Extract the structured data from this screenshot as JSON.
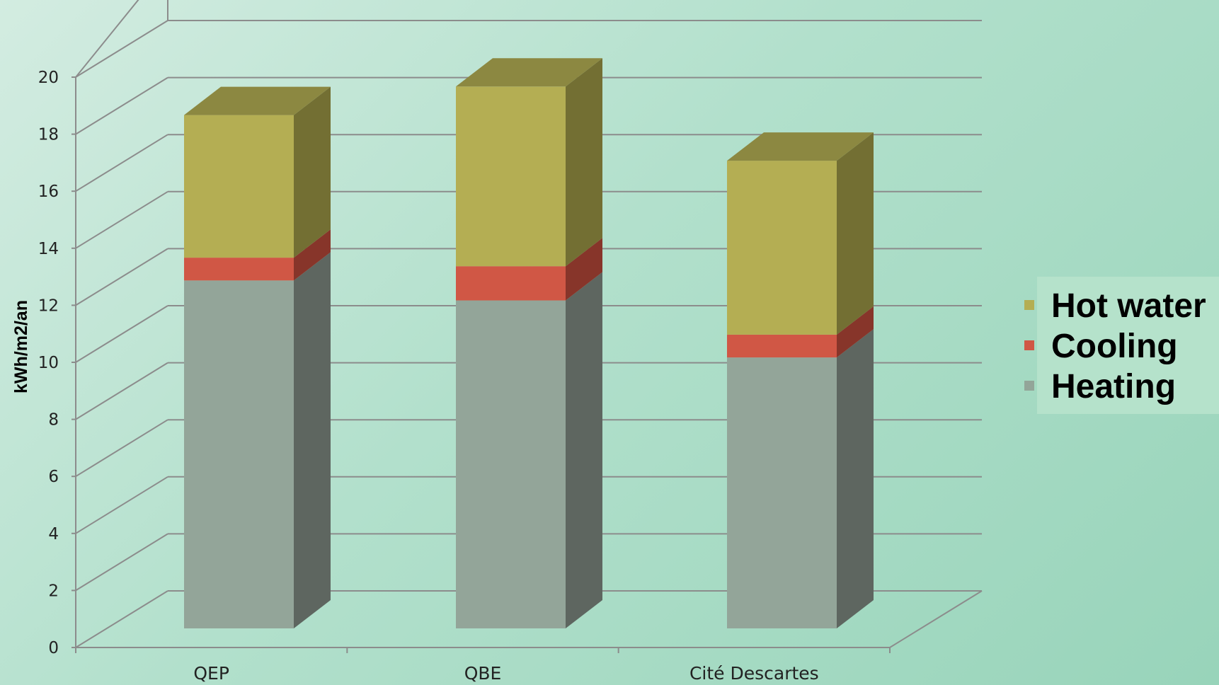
{
  "chart_data": {
    "type": "bar",
    "stacked": true,
    "three_d": true,
    "categories": [
      "QEP",
      "QBE",
      "Cité Descartes"
    ],
    "series": [
      {
        "name": "Heating",
        "values": [
          12.2,
          11.5,
          9.5
        ],
        "color": "#93a599",
        "side_color": "#5e6660"
      },
      {
        "name": "Cooling",
        "values": [
          0.8,
          1.2,
          0.8
        ],
        "color": "#d05745",
        "side_color": "#87352a"
      },
      {
        "name": "Hot water",
        "values": [
          5.0,
          6.3,
          6.1
        ],
        "color": "#b4ae53",
        "side_color": "#736f33"
      }
    ],
    "ylabel": "kWh/m2/an",
    "xlabel": "",
    "title": "",
    "ylim": [
      0,
      20
    ],
    "yticks": [
      0,
      2,
      4,
      6,
      8,
      10,
      12,
      14,
      16,
      18,
      20
    ],
    "grid": true,
    "legend_position": "right",
    "legend_order": [
      "Hot water",
      "Cooling",
      "Heating"
    ],
    "colors": {
      "grid": "#8c8c8c",
      "legend_bg": "#b5e2cb"
    }
  }
}
